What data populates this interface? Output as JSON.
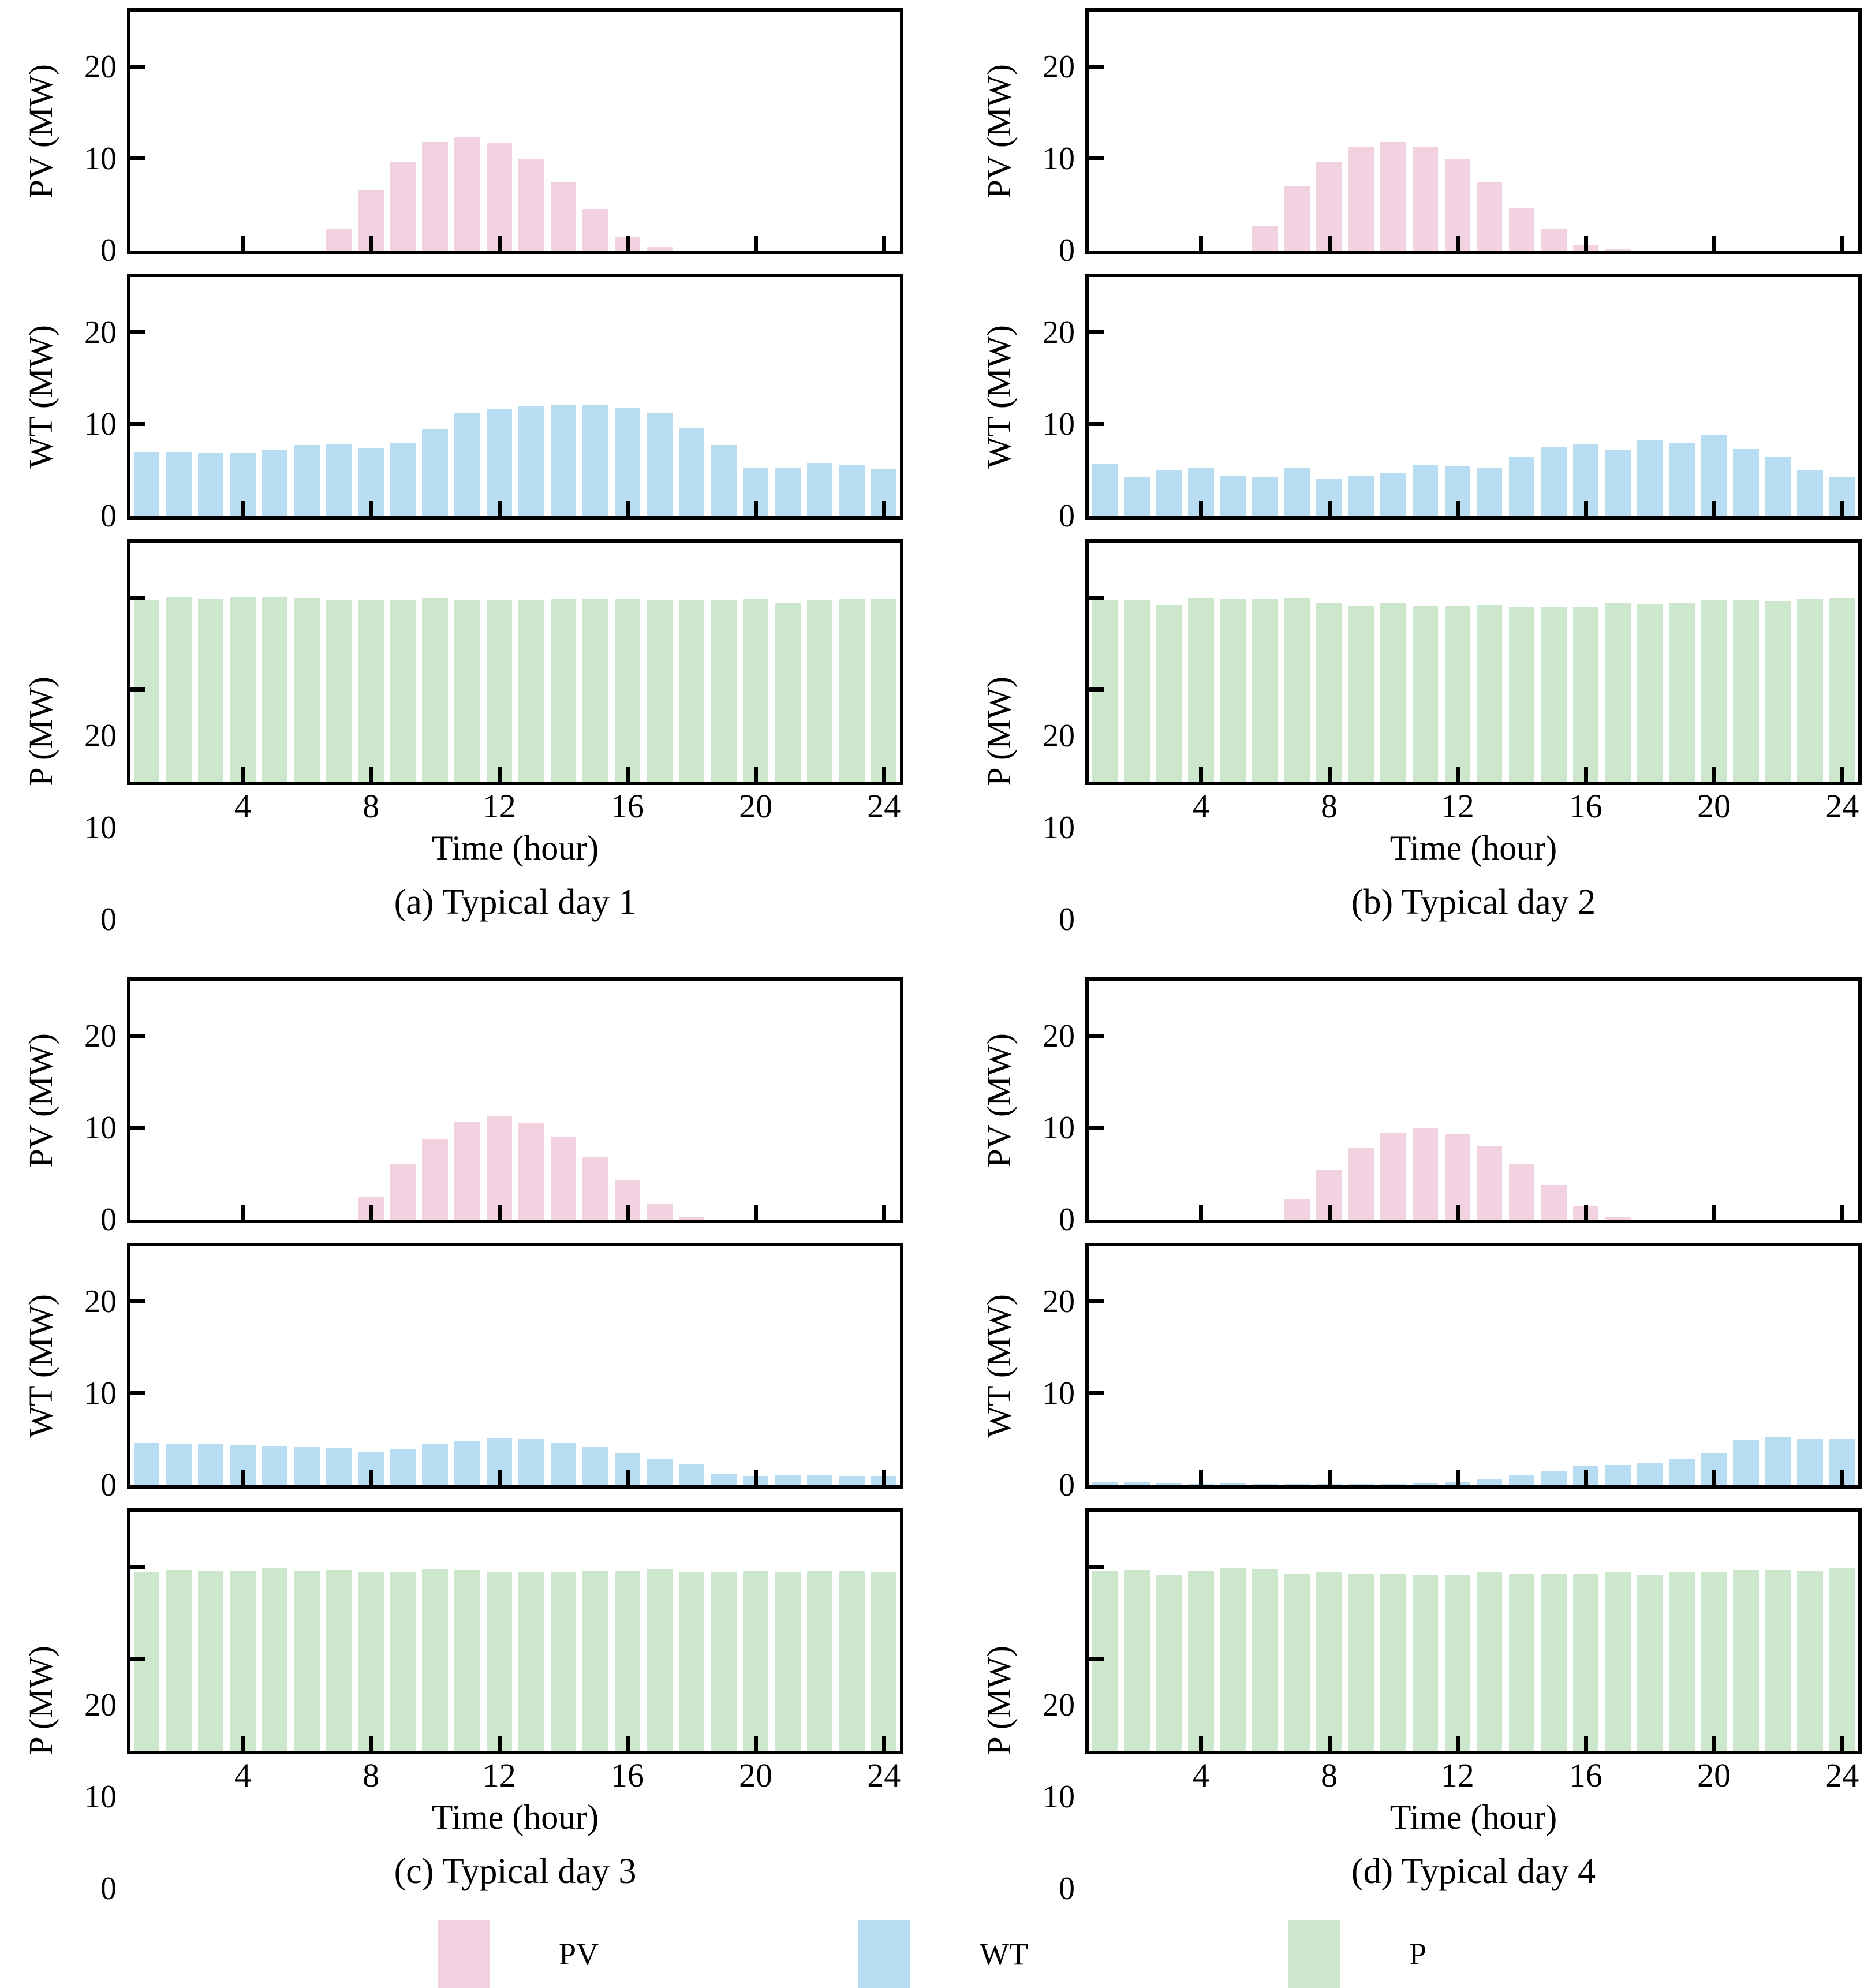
{
  "figure": {
    "background": "#ffffff",
    "axis_color": "#000000"
  },
  "axes": {
    "xlabel": "Time (hour)",
    "x_hours": [
      1,
      2,
      3,
      4,
      5,
      6,
      7,
      8,
      9,
      10,
      11,
      12,
      13,
      14,
      15,
      16,
      17,
      18,
      19,
      20,
      21,
      22,
      23,
      24
    ],
    "xticks": [
      4,
      8,
      12,
      16,
      20,
      24
    ],
    "yticks": [
      0,
      10,
      20
    ],
    "ylim": [
      0,
      26
    ],
    "grid": "off"
  },
  "legend": {
    "position": "bottom-center",
    "entries": [
      {
        "label": "PV",
        "color": "#F2D2E0"
      },
      {
        "label": "WT",
        "color": "#B8DCF2"
      },
      {
        "label": "P",
        "color": "#CCE7CB"
      }
    ]
  },
  "chart_data": [
    {
      "type": "bar",
      "caption": "(a) Typical day 1",
      "xlabel": "Time (hour)",
      "xticks": [
        4,
        8,
        12,
        16,
        20,
        24
      ],
      "ylim": [
        0,
        26
      ],
      "series": [
        {
          "name": "PV",
          "ylabel": "PV (MW)",
          "color": "#F2D2E0",
          "values": [
            0,
            0,
            0,
            0,
            0,
            0,
            2.4,
            6.6,
            9.7,
            11.8,
            12.4,
            11.7,
            10.0,
            7.4,
            4.5,
            1.5,
            0.4,
            0,
            0,
            0,
            0,
            0,
            0,
            0
          ]
        },
        {
          "name": "WT",
          "ylabel": "WT (MW)",
          "color": "#B8DCF2",
          "values": [
            7.0,
            7.0,
            6.9,
            6.9,
            7.2,
            7.7,
            7.8,
            7.4,
            7.9,
            9.4,
            11.2,
            11.7,
            12.0,
            12.1,
            12.1,
            11.8,
            11.2,
            9.6,
            7.7,
            5.3,
            5.3,
            5.8,
            5.5,
            5.1
          ]
        },
        {
          "name": "P",
          "ylabel": "P (MW)",
          "color": "#CCE7CB",
          "values": [
            19.7,
            20.1,
            19.9,
            20.1,
            20.1,
            20.0,
            19.8,
            19.8,
            19.7,
            20.0,
            19.8,
            19.7,
            19.7,
            19.9,
            19.9,
            19.9,
            19.8,
            19.7,
            19.7,
            19.9,
            19.5,
            19.7,
            19.9,
            19.9
          ]
        }
      ]
    },
    {
      "type": "bar",
      "caption": "(b) Typical day 2",
      "xlabel": "Time (hour)",
      "xticks": [
        4,
        8,
        12,
        16,
        20,
        24
      ],
      "ylim": [
        0,
        26
      ],
      "series": [
        {
          "name": "PV",
          "ylabel": "PV (MW)",
          "color": "#F2D2E0",
          "values": [
            0,
            0,
            0,
            0,
            0,
            2.7,
            7.0,
            9.7,
            11.3,
            11.8,
            11.3,
            9.9,
            7.5,
            4.6,
            2.3,
            0.6,
            0.2,
            0,
            0,
            0,
            0,
            0,
            0,
            0
          ]
        },
        {
          "name": "WT",
          "ylabel": "WT (MW)",
          "color": "#B8DCF2",
          "values": [
            5.7,
            4.2,
            5.0,
            5.3,
            4.4,
            4.3,
            5.2,
            4.1,
            4.4,
            4.7,
            5.6,
            5.4,
            5.2,
            6.4,
            7.5,
            7.8,
            7.2,
            8.3,
            7.9,
            8.8,
            7.3,
            6.5,
            5.0,
            4.2
          ]
        },
        {
          "name": "P",
          "ylabel": "P (MW)",
          "color": "#CCE7CB",
          "values": [
            19.7,
            19.8,
            19.2,
            20.0,
            19.9,
            19.9,
            20.0,
            19.5,
            19.1,
            19.4,
            19.1,
            19.1,
            19.2,
            19.0,
            19.0,
            19.0,
            19.4,
            19.3,
            19.5,
            19.8,
            19.8,
            19.6,
            19.9,
            20.0
          ]
        }
      ]
    },
    {
      "type": "bar",
      "caption": "(c) Typical day 3",
      "xlabel": "Time (hour)",
      "xticks": [
        4,
        8,
        12,
        16,
        20,
        24
      ],
      "ylim": [
        0,
        26
      ],
      "series": [
        {
          "name": "PV",
          "ylabel": "PV (MW)",
          "color": "#F2D2E0",
          "values": [
            0,
            0,
            0,
            0,
            0,
            0,
            0,
            2.5,
            6.1,
            8.8,
            10.7,
            11.3,
            10.5,
            9.0,
            6.8,
            4.3,
            1.7,
            0.3,
            0,
            0,
            0,
            0,
            0,
            0
          ]
        },
        {
          "name": "WT",
          "ylabel": "WT (MW)",
          "color": "#B8DCF2",
          "values": [
            4.6,
            4.5,
            4.5,
            4.4,
            4.3,
            4.2,
            4.1,
            3.6,
            3.9,
            4.5,
            4.8,
            5.1,
            5.0,
            4.6,
            4.2,
            3.5,
            2.9,
            2.3,
            1.2,
            1.0,
            1.1,
            1.1,
            1.0,
            1.0
          ]
        },
        {
          "name": "P",
          "ylabel": "P (MW)",
          "color": "#CCE7CB",
          "values": [
            19.5,
            19.7,
            19.6,
            19.6,
            19.9,
            19.6,
            19.7,
            19.4,
            19.4,
            19.8,
            19.7,
            19.5,
            19.4,
            19.5,
            19.6,
            19.6,
            19.8,
            19.4,
            19.4,
            19.6,
            19.5,
            19.6,
            19.6,
            19.4
          ]
        }
      ]
    },
    {
      "type": "bar",
      "caption": "(d) Typical day 4",
      "xlabel": "Time (hour)",
      "xticks": [
        4,
        8,
        12,
        16,
        20,
        24
      ],
      "ylim": [
        0,
        26
      ],
      "series": [
        {
          "name": "PV",
          "ylabel": "PV (MW)",
          "color": "#F2D2E0",
          "values": [
            0,
            0,
            0,
            0,
            0,
            0,
            2.2,
            5.4,
            7.8,
            9.4,
            10.0,
            9.3,
            8.0,
            6.1,
            3.8,
            1.5,
            0.3,
            0,
            0,
            0,
            0,
            0,
            0,
            0
          ]
        },
        {
          "name": "WT",
          "ylabel": "WT (MW)",
          "color": "#B8DCF2",
          "values": [
            0.4,
            0.3,
            0.2,
            0.1,
            0.2,
            0.1,
            0.1,
            0.1,
            0.1,
            0.1,
            0.2,
            0.4,
            0.7,
            1.1,
            1.5,
            2.1,
            2.2,
            2.4,
            2.9,
            3.5,
            4.9,
            5.3,
            5.0,
            5.0
          ]
        },
        {
          "name": "P",
          "ylabel": "P (MW)",
          "color": "#CCE7CB",
          "values": [
            19.6,
            19.7,
            19.1,
            19.6,
            19.9,
            19.8,
            19.2,
            19.4,
            19.2,
            19.2,
            19.1,
            19.1,
            19.4,
            19.2,
            19.3,
            19.2,
            19.4,
            19.1,
            19.5,
            19.4,
            19.7,
            19.7,
            19.6,
            19.9
          ]
        }
      ]
    }
  ]
}
